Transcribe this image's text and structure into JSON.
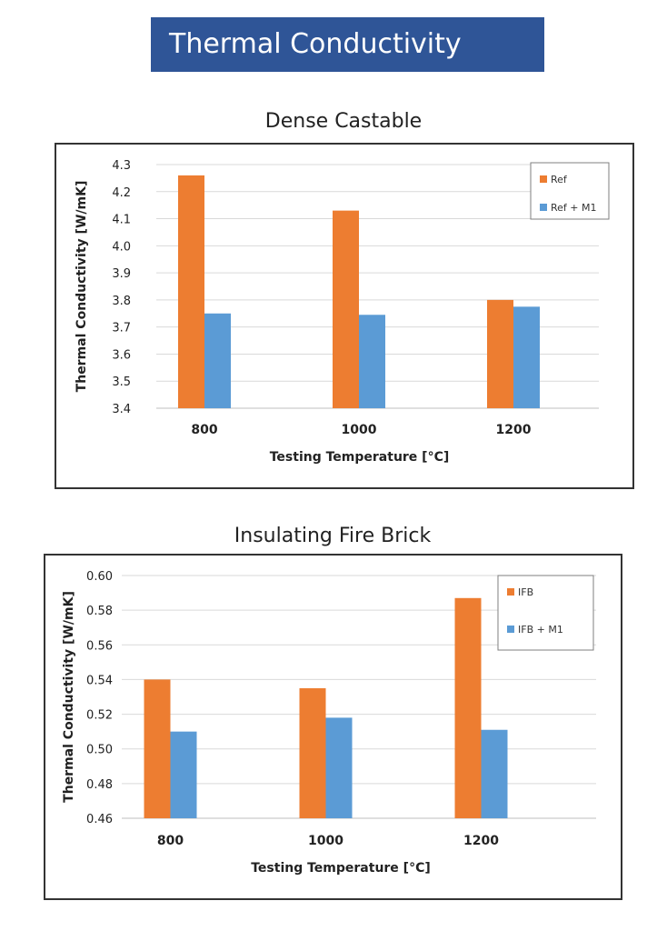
{
  "page": {
    "title": "Thermal Conductivity"
  },
  "colors": {
    "banner": "#2f5597",
    "series_a": "#ed7d31",
    "series_b": "#5b9bd5",
    "grid": "#d9d9d9"
  },
  "chart_data": [
    {
      "type": "bar",
      "title": "Dense Castable",
      "xlabel": "Testing Temperature [°C]",
      "ylabel": "Thermal Conductivity [W/mK]",
      "categories": [
        "800",
        "1000",
        "1200"
      ],
      "ylim": [
        3.4,
        4.3
      ],
      "yticks": [
        "3.4",
        "3.5",
        "3.6",
        "3.7",
        "3.8",
        "3.9",
        "4.0",
        "4.1",
        "4.2",
        "4.3"
      ],
      "grid": true,
      "legend_position": "top-right",
      "series": [
        {
          "name": "Ref",
          "values": [
            4.26,
            4.13,
            3.8
          ]
        },
        {
          "name": "Ref + M1",
          "values": [
            3.75,
            3.745,
            3.775
          ]
        }
      ]
    },
    {
      "type": "bar",
      "title": "Insulating Fire Brick",
      "xlabel": "Testing Temperature [°C]",
      "ylabel": "Thermal Conductivity [W/mK]",
      "categories": [
        "800",
        "1000",
        "1200"
      ],
      "ylim": [
        0.46,
        0.6
      ],
      "yticks": [
        "0.46",
        "0.48",
        "0.50",
        "0.52",
        "0.54",
        "0.56",
        "0.58",
        "0.60"
      ],
      "grid": true,
      "legend_position": "top-right",
      "series": [
        {
          "name": "IFB",
          "values": [
            0.54,
            0.535,
            0.587
          ]
        },
        {
          "name": "IFB + M1",
          "values": [
            0.51,
            0.518,
            0.511
          ]
        }
      ]
    }
  ]
}
